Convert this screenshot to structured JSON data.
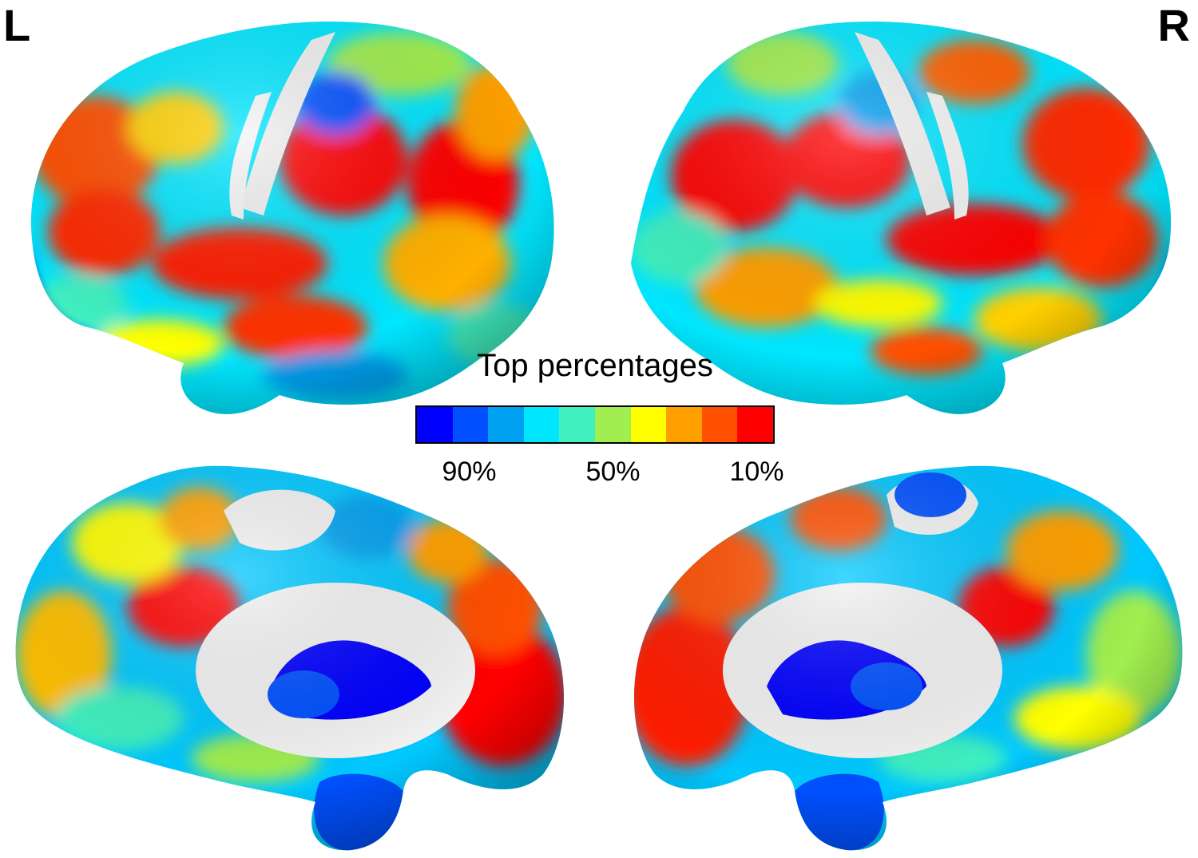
{
  "labels": {
    "left": "L",
    "right": "R"
  },
  "colorbar": {
    "title": "Top percentages",
    "colors": [
      "#0000ff",
      "#0050ff",
      "#00a0f0",
      "#00e6ff",
      "#40f0c0",
      "#a0ee50",
      "#ffff00",
      "#ffa000",
      "#ff5000",
      "#ff0000"
    ],
    "ticks": [
      {
        "label": "90%",
        "index": 1
      },
      {
        "label": "50%",
        "index": 5
      },
      {
        "label": "10%",
        "index": 9
      }
    ]
  },
  "colors": {
    "background": "#ffffff",
    "unmapped_surface": "#f0f0f0",
    "blue_dark": "#0000ff",
    "blue": "#0050ff",
    "sky": "#00a0f0",
    "cyan": "#00e6ff",
    "teal": "#40f0c0",
    "green": "#a0ee50",
    "yellow": "#ffff00",
    "orange": "#ffa000",
    "red_orange": "#ff5000",
    "red": "#ff0000"
  },
  "views": [
    {
      "hemisphere": "L",
      "surface": "lateral"
    },
    {
      "hemisphere": "R",
      "surface": "lateral"
    },
    {
      "hemisphere": "L",
      "surface": "medial"
    },
    {
      "hemisphere": "R",
      "surface": "medial"
    }
  ]
}
